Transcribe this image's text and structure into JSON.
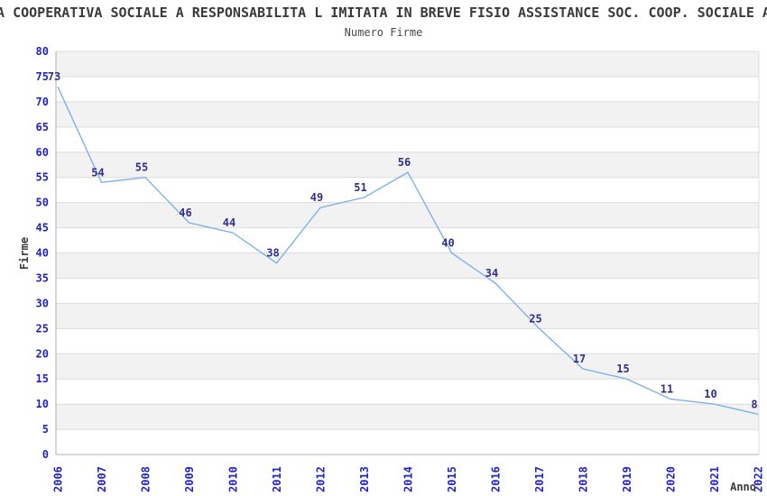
{
  "chart": {
    "title": "A COOPERATIVA SOCIALE A RESPONSABILITA L IMITATA IN BREVE FISIO ASSISTANCE SOC. COOP. SOCIALE A",
    "subtitle": "Numero Firme",
    "xlabel": "Anno",
    "ylabel": "Firme"
  },
  "chart_data": {
    "type": "line",
    "title": "A COOPERATIVA SOCIALE A RESPONSABILITA L IMITATA IN BREVE FISIO ASSISTANCE SOC. COOP. SOCIALE A",
    "subtitle": "Numero Firme",
    "xlabel": "Anno",
    "ylabel": "Firme",
    "x": [
      2006,
      2007,
      2008,
      2009,
      2010,
      2011,
      2012,
      2013,
      2014,
      2015,
      2016,
      2017,
      2018,
      2019,
      2020,
      2021,
      2022
    ],
    "series": [
      {
        "name": "Firme",
        "values": [
          73,
          54,
          55,
          46,
          44,
          38,
          49,
          51,
          56,
          40,
          34,
          25,
          17,
          15,
          11,
          10,
          8
        ]
      }
    ],
    "ylim": [
      0,
      80
    ],
    "ytick_step": 5,
    "grid": "horizontal gridlines with alternating shaded bands",
    "legend": "none",
    "colors": {
      "line": "#7EB1E8",
      "point_label": "#30308C",
      "tick_label": "#2222CC",
      "band_fill": "#F2F2F2",
      "gridline": "#DCDCDC",
      "axis_line": "#B0B0B0",
      "border_line": "#DCDCDC",
      "text": "#3A3A3A"
    }
  }
}
